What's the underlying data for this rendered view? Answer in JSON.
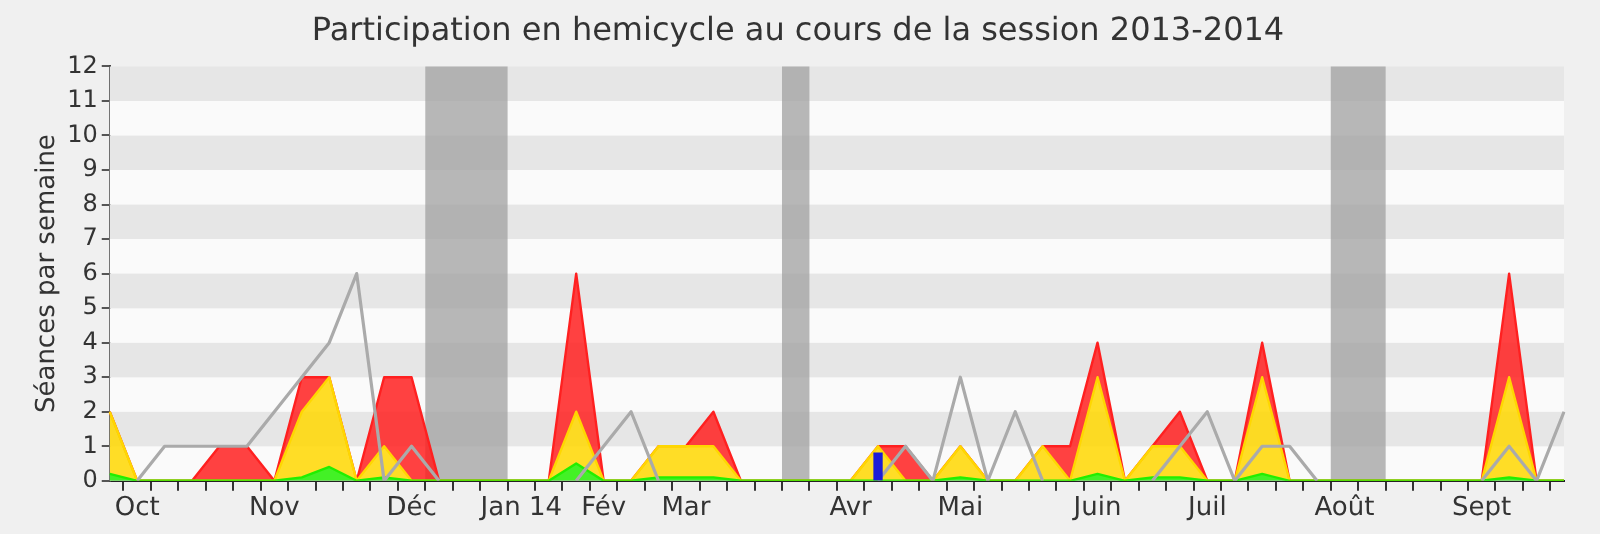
{
  "chart_data": {
    "type": "area",
    "title": "Participation en hemicycle au cours de la session 2013-2014",
    "ylabel": "Séances par semaine",
    "categories": [
      null,
      "Oct",
      null,
      null,
      null,
      null,
      "Nov",
      null,
      null,
      null,
      null,
      "Déc",
      null,
      null,
      null,
      "Jan 14",
      null,
      null,
      "Fév",
      null,
      null,
      "Mar",
      null,
      null,
      null,
      null,
      null,
      "Avr",
      null,
      null,
      null,
      "Mai",
      null,
      null,
      null,
      null,
      "Juin",
      null,
      null,
      null,
      "Juil",
      null,
      null,
      null,
      null,
      "Août",
      null,
      null,
      null,
      null,
      "Sept",
      null,
      null,
      null
    ],
    "stacked": true,
    "series": [
      {
        "color": "#22ee00",
        "values": [
          0.2,
          0,
          0,
          0,
          0,
          0,
          0,
          0.1,
          0.4,
          0,
          0.1,
          0,
          0,
          0,
          0,
          0,
          0,
          0.5,
          0,
          0,
          0.1,
          0.1,
          0.1,
          0,
          0,
          0,
          0,
          0,
          0,
          0,
          0,
          0.1,
          0,
          0,
          0,
          0,
          0.2,
          0,
          0.1,
          0.1,
          0,
          0,
          0.2,
          0,
          0,
          0,
          0,
          0,
          0,
          0,
          0,
          0.1,
          0,
          0
        ]
      },
      {
        "color": "#ffd700",
        "values": [
          1.8,
          0,
          0,
          0,
          0,
          0,
          0,
          1.9,
          2.6,
          0,
          0.9,
          0,
          0,
          0,
          0,
          0,
          0,
          1.5,
          0,
          0,
          0.9,
          0.9,
          0.9,
          0,
          0,
          0,
          0,
          0,
          1,
          0,
          0,
          0.9,
          0,
          0,
          1,
          0,
          2.8,
          0,
          0.9,
          0.9,
          0,
          0,
          2.8,
          0,
          0,
          0,
          0,
          0,
          0,
          0,
          0,
          2.9,
          0,
          0
        ]
      },
      {
        "color": "#ff2020",
        "values": [
          0,
          0,
          0,
          0,
          1,
          1,
          0,
          1,
          0,
          0,
          2,
          3,
          0,
          0,
          0,
          0,
          0,
          4,
          0,
          0,
          0,
          0,
          1,
          0,
          0,
          0,
          0,
          0,
          0,
          1,
          0,
          0,
          0,
          0,
          0,
          1,
          1,
          0,
          0,
          1,
          0,
          0,
          1,
          0,
          0,
          0,
          0,
          0,
          0,
          0,
          0,
          3,
          0,
          0
        ]
      },
      {
        "type": "line",
        "color": "#aaaaaa",
        "values": [
          null,
          0,
          1,
          1,
          1,
          1,
          2,
          3,
          4,
          6,
          0,
          1,
          0,
          null,
          null,
          null,
          null,
          0,
          1,
          2,
          0,
          null,
          null,
          null,
          null,
          null,
          null,
          null,
          0,
          1,
          0,
          3,
          0,
          2,
          0,
          null,
          null,
          null,
          0,
          1,
          2,
          0,
          1,
          1,
          0,
          null,
          null,
          null,
          null,
          null,
          0,
          1,
          0,
          2
        ]
      },
      {
        "type": "bar",
        "color": "#1c1cd8",
        "values": [
          null,
          null,
          null,
          null,
          null,
          null,
          null,
          null,
          null,
          null,
          null,
          null,
          null,
          null,
          null,
          null,
          null,
          null,
          null,
          null,
          null,
          null,
          null,
          null,
          null,
          null,
          null,
          null,
          0.8,
          null,
          null,
          null,
          null,
          null,
          null,
          null,
          null,
          null,
          null,
          null,
          null,
          null,
          null,
          null,
          null,
          null,
          null,
          null,
          null,
          null,
          null,
          null,
          null,
          null
        ]
      }
    ],
    "ylim": [
      0,
      12
    ],
    "yticks": [
      0,
      1,
      2,
      3,
      4,
      5,
      6,
      7,
      8,
      9,
      10,
      11,
      12
    ],
    "legend": false,
    "marker": "none"
  }
}
